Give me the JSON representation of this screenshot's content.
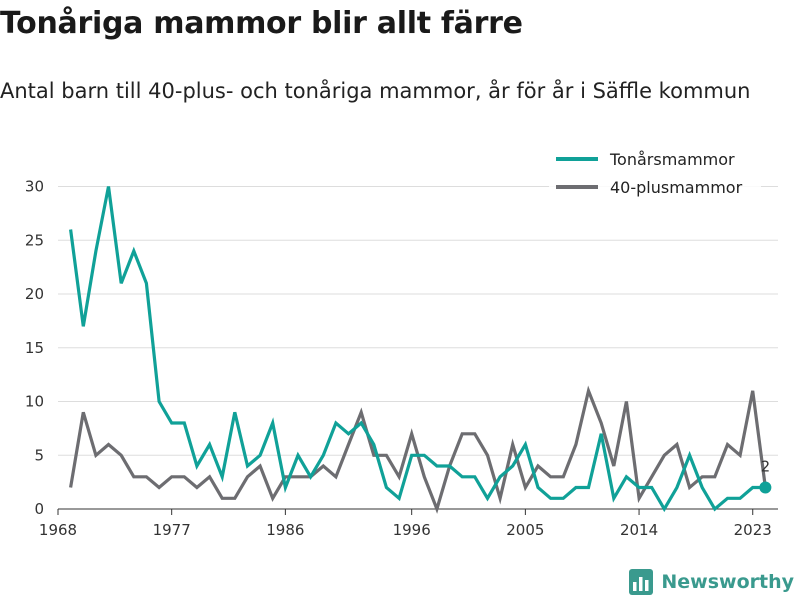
{
  "title": "Tonåriga mammor blir allt färre",
  "subtitle": "Antal barn till 40-plus- och tonåriga mammor, år för år i Säffle kommun",
  "brand": {
    "name": "Newsworthy"
  },
  "colors": {
    "teal": "#10a198",
    "gray": "#6d6d71",
    "grid": "#dddddd"
  },
  "chart_data": {
    "type": "line",
    "x": [
      1969,
      1970,
      1971,
      1972,
      1973,
      1974,
      1975,
      1976,
      1977,
      1978,
      1979,
      1980,
      1981,
      1982,
      1983,
      1984,
      1985,
      1986,
      1987,
      1988,
      1989,
      1990,
      1991,
      1992,
      1993,
      1994,
      1995,
      1996,
      1997,
      1998,
      1999,
      2000,
      2001,
      2002,
      2003,
      2004,
      2005,
      2006,
      2007,
      2008,
      2009,
      2010,
      2011,
      2012,
      2013,
      2014,
      2015,
      2016,
      2017,
      2018,
      2019,
      2020,
      2021,
      2022,
      2023,
      2024
    ],
    "series": [
      {
        "name": "Tonårsmammor",
        "color": "#10a198",
        "values": [
          26,
          17,
          24,
          30,
          21,
          24,
          21,
          10,
          8,
          8,
          4,
          6,
          3,
          9,
          4,
          5,
          8,
          2,
          5,
          3,
          5,
          8,
          7,
          8,
          6,
          2,
          1,
          5,
          5,
          4,
          4,
          3,
          3,
          1,
          3,
          4,
          6,
          2,
          1,
          1,
          2,
          2,
          7,
          1,
          3,
          2,
          2,
          0,
          2,
          5,
          2,
          0,
          1,
          1,
          2,
          2
        ]
      },
      {
        "name": "40-plusmammor",
        "color": "#6d6d71",
        "values": [
          2,
          9,
          5,
          6,
          5,
          3,
          3,
          2,
          3,
          3,
          2,
          3,
          1,
          1,
          3,
          4,
          1,
          3,
          3,
          3,
          4,
          3,
          6,
          9,
          5,
          5,
          3,
          7,
          3,
          0,
          4,
          7,
          7,
          5,
          1,
          6,
          2,
          4,
          3,
          3,
          6,
          11,
          8,
          4,
          10,
          1,
          3,
          5,
          6,
          2,
          3,
          3,
          6,
          5,
          11,
          2
        ]
      }
    ],
    "xticks": [
      "1968",
      "1977",
      "1986",
      "1996",
      "2005",
      "2014",
      "2023"
    ],
    "yticks": [
      "0",
      "5",
      "10",
      "15",
      "20",
      "25",
      "30"
    ],
    "xlim": [
      1968,
      2025
    ],
    "ylim": [
      0,
      32
    ],
    "end_label": "2",
    "legend_position": "top-right",
    "grid": "horizontal"
  }
}
